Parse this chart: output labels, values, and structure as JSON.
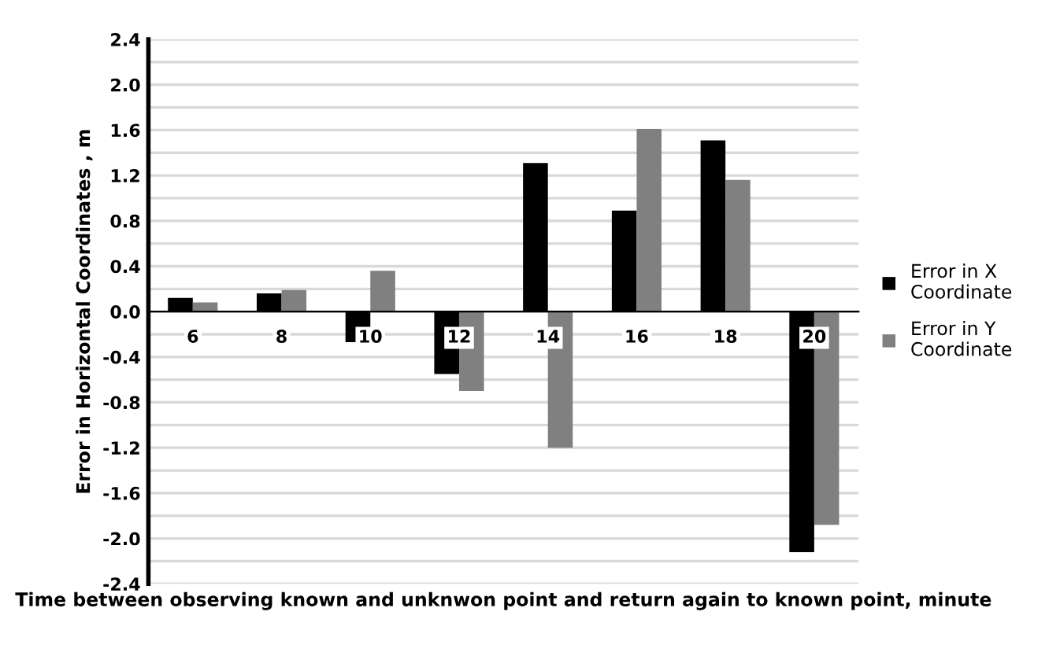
{
  "chart_data": {
    "type": "bar",
    "xlabel": "Time between observing known and unknwon point and return again to known point, minute",
    "ylabel": "Error in Horizontal Coordinates , m",
    "categories": [
      "6",
      "8",
      "10",
      "12",
      "14",
      "16",
      "18",
      "20"
    ],
    "series": [
      {
        "name": "Error in X Coordinate",
        "color": "#000000",
        "values": [
          0.12,
          0.16,
          -0.27,
          -0.55,
          1.31,
          0.89,
          1.51,
          -2.12
        ]
      },
      {
        "name": "Error in Y Coordinate",
        "color": "#808080",
        "values": [
          0.08,
          0.19,
          0.36,
          -0.7,
          -1.2,
          1.61,
          1.16,
          -1.88
        ]
      }
    ],
    "ylim": [
      -2.4,
      2.4
    ],
    "yticks": [
      -2.4,
      {
        "value": -2.2,
        "label": null
      },
      {
        "value": -2.0,
        "label": "-2.0"
      },
      {
        "value": -1.8,
        "label": null
      },
      -1.6,
      {
        "value": -1.4,
        "label": null
      },
      -1.2,
      {
        "value": -1.0,
        "label": null
      },
      -0.8,
      {
        "value": -0.6,
        "label": null
      },
      -0.4,
      {
        "value": -0.2,
        "label": null
      },
      {
        "value": 0.0,
        "label": "0.0"
      },
      {
        "value": 0.2,
        "label": null
      },
      0.4,
      {
        "value": 0.6,
        "label": null
      },
      0.8,
      {
        "value": 1.0,
        "label": null
      },
      1.2,
      {
        "value": 1.4,
        "label": null
      },
      1.6,
      {
        "value": 1.8,
        "label": null
      },
      {
        "value": 2.0,
        "label": "2.0"
      },
      {
        "value": 2.2,
        "label": null
      },
      2.4
    ],
    "grid": "y",
    "legend": "right"
  }
}
